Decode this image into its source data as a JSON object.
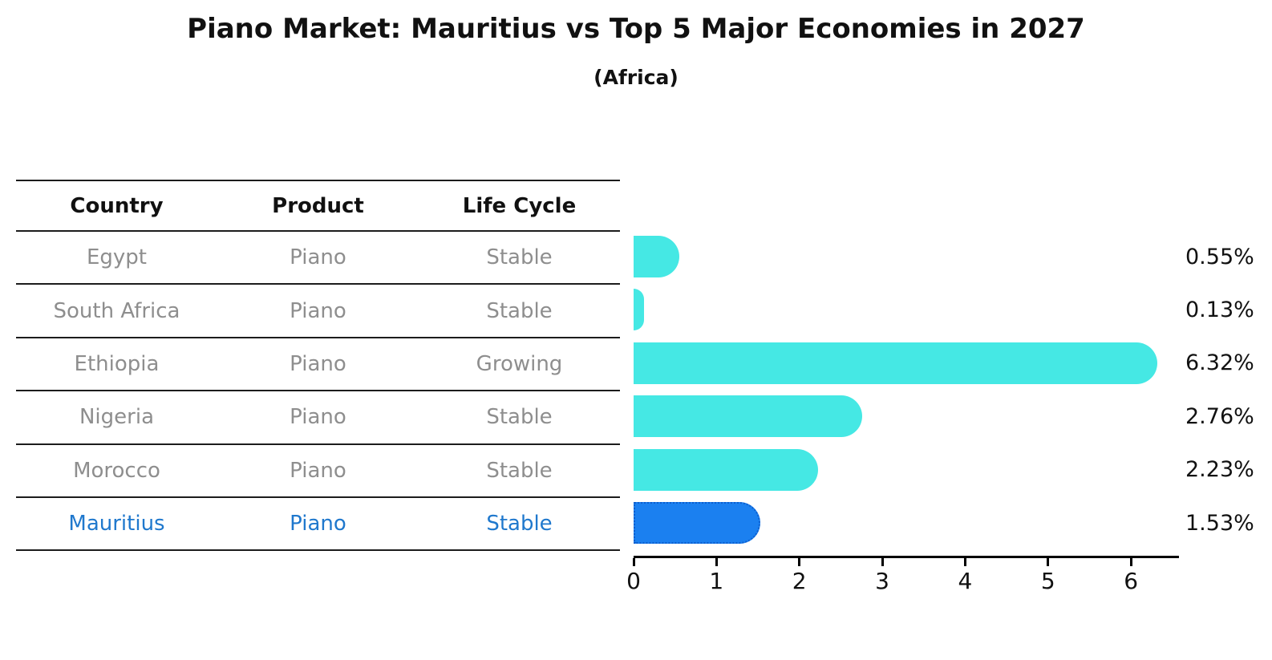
{
  "title": "Piano Market: Mauritius vs Top 5 Major Economies in 2027",
  "subtitle": "(Africa)",
  "table": {
    "headers": [
      "Country",
      "Product",
      "Life Cycle"
    ],
    "rows": [
      {
        "country": "Egypt",
        "product": "Piano",
        "life_cycle": "Stable",
        "highlight": false
      },
      {
        "country": "South Africa",
        "product": "Piano",
        "life_cycle": "Stable",
        "highlight": false
      },
      {
        "country": "Ethiopia",
        "product": "Piano",
        "life_cycle": "Growing",
        "highlight": false
      },
      {
        "country": "Nigeria",
        "product": "Piano",
        "life_cycle": "Stable",
        "highlight": false
      },
      {
        "country": "Morocco",
        "product": "Piano",
        "life_cycle": "Stable",
        "highlight": false
      },
      {
        "country": "Mauritius",
        "product": "Piano",
        "life_cycle": "Stable",
        "highlight": true
      }
    ]
  },
  "chart_data": {
    "type": "bar",
    "orientation": "horizontal",
    "title": "Piano Market: Mauritius vs Top 5 Major Economies in 2027",
    "subtitle": "(Africa)",
    "categories": [
      "Egypt",
      "South Africa",
      "Ethiopia",
      "Nigeria",
      "Morocco",
      "Mauritius"
    ],
    "values": [
      0.55,
      0.13,
      6.32,
      2.76,
      2.23,
      1.53
    ],
    "value_labels": [
      "0.55%",
      "0.13%",
      "6.32%",
      "2.76%",
      "2.23%",
      "1.53%"
    ],
    "x_ticks": [
      0,
      1,
      2,
      3,
      4,
      5,
      6
    ],
    "xlim": [
      0,
      6.55
    ],
    "xlabel": "",
    "ylabel": "",
    "grid": false,
    "legend": "none",
    "bar_color": "#45e8e4",
    "highlight_index": 5,
    "highlight_color": "#1b80f0",
    "highlight_border_color": "#0d5ece",
    "highlight_text_color": "#1f78cd"
  }
}
